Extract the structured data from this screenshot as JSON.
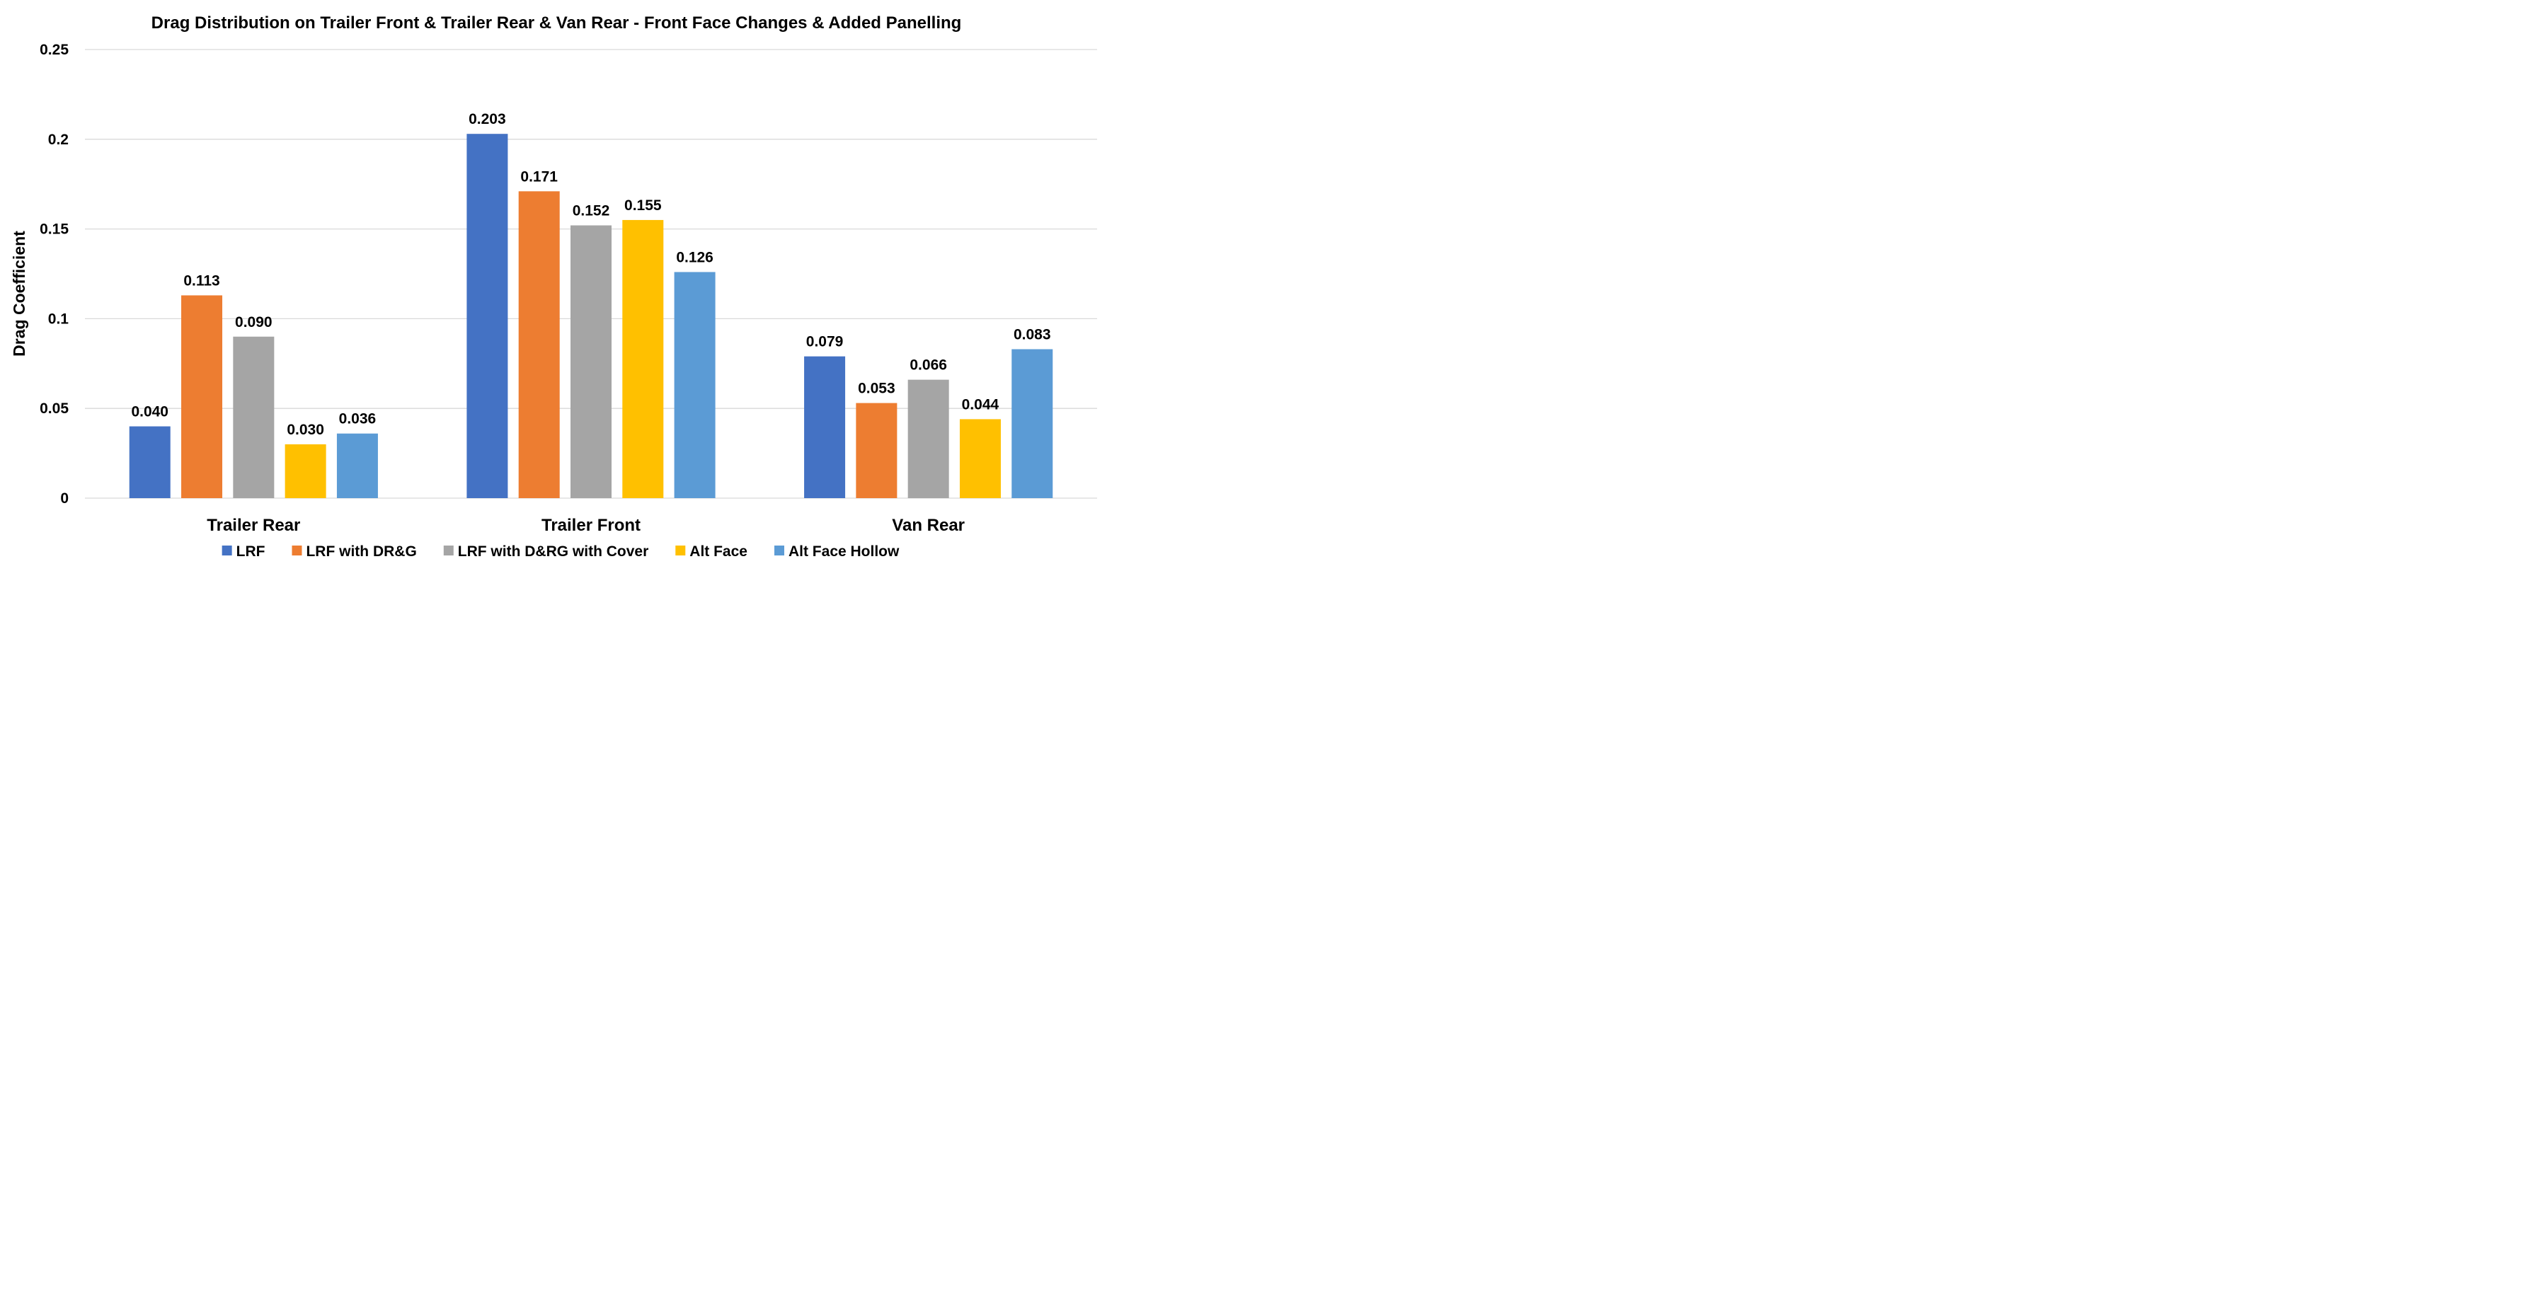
{
  "chart_data": {
    "type": "bar",
    "title": "Drag Distribution on Trailer Front & Trailer Rear & Van Rear - Front Face Changes & Added Panelling",
    "xlabel": "",
    "ylabel": "Drag Coefficient",
    "ylim": [
      0,
      0.25
    ],
    "yticks": [
      "0",
      "0.05",
      "0.1",
      "0.15",
      "0.2",
      "0.25"
    ],
    "ytick_values": [
      0,
      0.05,
      0.1,
      0.15,
      0.2,
      0.25
    ],
    "grid": true,
    "legend_position": "bottom",
    "categories": [
      "Trailer Rear",
      "Trailer Front",
      "Van Rear"
    ],
    "series": [
      {
        "name": "LRF",
        "color": "#4472C4",
        "values": [
          0.04,
          0.203,
          0.079
        ],
        "labels": [
          "0.040",
          "0.203",
          "0.079"
        ]
      },
      {
        "name": "LRF with DR&G",
        "color": "#ED7D31",
        "values": [
          0.113,
          0.171,
          0.053
        ],
        "labels": [
          "0.113",
          "0.171",
          "0.053"
        ]
      },
      {
        "name": "LRF with D&RG with Cover",
        "color": "#A5A5A5",
        "values": [
          0.09,
          0.152,
          0.066
        ],
        "labels": [
          "0.090",
          "0.152",
          "0.066"
        ]
      },
      {
        "name": "Alt Face",
        "color": "#FFC000",
        "values": [
          0.03,
          0.155,
          0.044
        ],
        "labels": [
          "0.030",
          "0.155",
          "0.044"
        ]
      },
      {
        "name": "Alt Face Hollow",
        "color": "#5B9BD5",
        "values": [
          0.036,
          0.126,
          0.083
        ],
        "labels": [
          "0.036",
          "0.126",
          "0.083"
        ]
      }
    ]
  }
}
